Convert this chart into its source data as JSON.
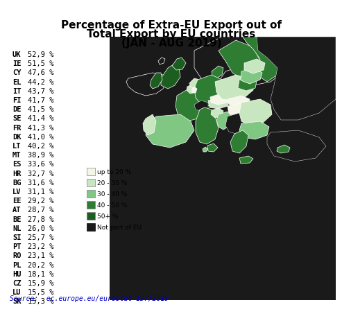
{
  "title_line1": "Percentage of Extra-EU Export out of",
  "title_line2": "Total Export by EU countries",
  "title_line3": "(JAN - AUG 2019)",
  "source": "Source:  ec.europe.eu/eurostat 157/2019",
  "countries": [
    "UK",
    "IE",
    "CY",
    "EL",
    "IT",
    "FI",
    "DE",
    "SE",
    "FR",
    "DK",
    "LT",
    "MT",
    "ES",
    "HR",
    "BG",
    "LV",
    "EE",
    "AT",
    "BE",
    "NL",
    "SI",
    "PT",
    "RO",
    "PL",
    "HU",
    "CZ",
    "LU",
    "SK"
  ],
  "values": [
    "52,9 %",
    "51,5 %",
    "47,6 %",
    "44,2 %",
    "43,7 %",
    "41,7 %",
    "41,5 %",
    "41,4 %",
    "41,3 %",
    "41,0 %",
    "40,2 %",
    "38,9 %",
    "33,6 %",
    "32,7 %",
    "31,6 %",
    "31,1 %",
    "29,2 %",
    "28,7 %",
    "27,8 %",
    "26,0 %",
    "25,7 %",
    "23,2 %",
    "23,1 %",
    "20,2 %",
    "18,1 %",
    "15,9 %",
    "15,5 %",
    "15,3 %"
  ],
  "legend_labels": [
    "up to 20 %",
    "20 - 30 %",
    "30 - 40 %",
    "40 - 50 %",
    "50+ %",
    "Not part of EU"
  ],
  "legend_colors": [
    "#f5f5e8",
    "#c8e6c0",
    "#81c784",
    "#2e7d32",
    "#1b5e20",
    "#1a1a1a"
  ],
  "bg_color": "#ffffff",
  "text_color": "#000000",
  "title_fontsize": 11,
  "label_fontsize": 7.5,
  "source_fontsize": 7
}
